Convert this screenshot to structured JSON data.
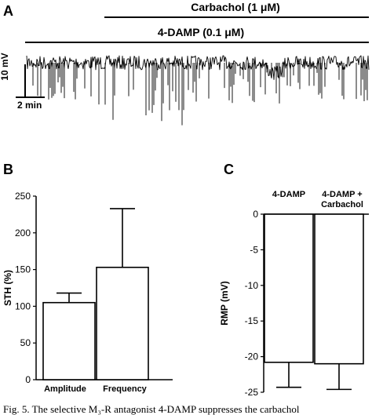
{
  "caption": "Fig. 5. The selective M₃-R antagonist 4-DAMP suppresses the carbachol",
  "panel_a": {
    "label": "A",
    "drug_top": "Carbachol (1 μM)",
    "drug_bottom": "4-DAMP (0.1 μM)",
    "scale_y": "10 mV",
    "scale_x": "2 min"
  },
  "chart_data": [
    {
      "panel": "B",
      "type": "bar",
      "ylabel": "STH (%)",
      "categories": [
        "Amplitude",
        "Frequency"
      ],
      "values": [
        105,
        153
      ],
      "errors": [
        13,
        80
      ],
      "ylim": [
        0,
        250
      ],
      "yticks": [
        0,
        50,
        100,
        150,
        200,
        250
      ],
      "bar_color": "#ffffff"
    },
    {
      "panel": "C",
      "type": "bar",
      "ylabel": "RMP (mV)",
      "categories": [
        "4-DAMP",
        "4-DAMP + Carbachol"
      ],
      "category_lines": [
        [
          "4-DAMP"
        ],
        [
          "4-DAMP +",
          "Carbachol"
        ]
      ],
      "values": [
        -20.8,
        -21.0
      ],
      "errors": [
        3.5,
        3.6
      ],
      "ylim": [
        -25,
        0
      ],
      "yticks": [
        0,
        -5,
        -10,
        -15,
        -20,
        -25
      ],
      "bar_color": "#ffffff"
    }
  ]
}
